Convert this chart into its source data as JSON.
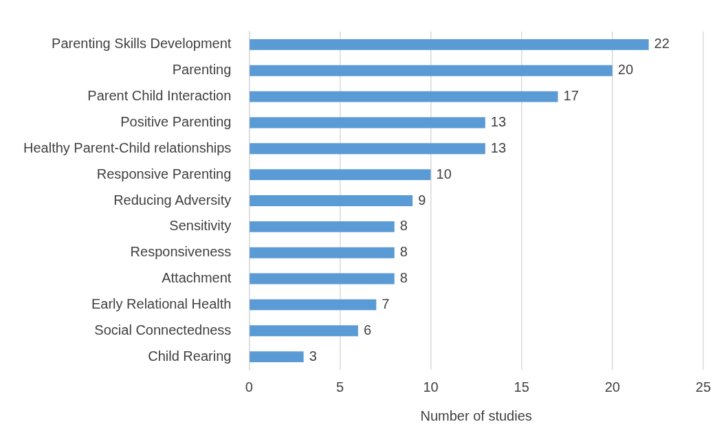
{
  "chart_data": {
    "type": "bar",
    "orientation": "horizontal",
    "xlabel": "Number of studies",
    "categories": [
      "Parenting Skills Development",
      "Parenting",
      "Parent Child Interaction",
      "Positive Parenting",
      "Healthy Parent-Child relationships",
      "Responsive Parenting",
      "Reducing Adversity",
      "Sensitivity",
      "Responsiveness",
      "Attachment",
      "Early Relational Health",
      "Social Connectedness",
      "Child Rearing"
    ],
    "values": [
      22,
      20,
      17,
      13,
      13,
      10,
      9,
      8,
      8,
      8,
      7,
      6,
      3
    ],
    "color": "#5b9bd5",
    "xlim": [
      0,
      25
    ],
    "xticks": [
      0,
      5,
      10,
      15,
      20,
      25
    ],
    "grid": "x",
    "data_labels": true,
    "legend": false
  }
}
